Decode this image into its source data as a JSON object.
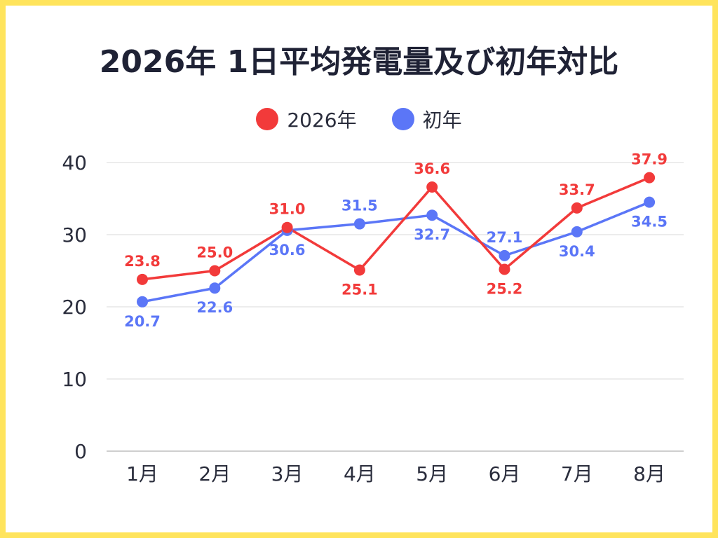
{
  "chart_data": {
    "type": "line",
    "title": "2026年 1日平均発電量及び初年対比",
    "categories": [
      "1月",
      "2月",
      "3月",
      "4月",
      "5月",
      "6月",
      "7月",
      "8月"
    ],
    "ylim": [
      0,
      40
    ],
    "yticks": [
      "0",
      "10",
      "20",
      "30",
      "40"
    ],
    "grid": true,
    "legend_position": "top-center",
    "series": [
      {
        "name": "2026年",
        "color": "#F23A3A",
        "values": [
          23.8,
          25.0,
          31.0,
          25.1,
          36.6,
          25.2,
          33.7,
          37.9
        ],
        "labels": [
          "23.8",
          "25.0",
          "31.0",
          "25.1",
          "36.6",
          "25.2",
          "33.7",
          "37.9"
        ],
        "label_side": [
          "above",
          "above",
          "above",
          "below",
          "above",
          "below",
          "above",
          "above"
        ]
      },
      {
        "name": "初年",
        "color": "#5B76F7",
        "values": [
          20.7,
          22.6,
          30.6,
          31.5,
          32.7,
          27.1,
          30.4,
          34.5
        ],
        "labels": [
          "20.7",
          "22.6",
          "30.6",
          "31.5",
          "32.7",
          "27.1",
          "30.4",
          "34.5"
        ],
        "label_side": [
          "below",
          "below",
          "below",
          "above",
          "below",
          "above",
          "below",
          "below"
        ]
      }
    ]
  },
  "colors": {
    "border": "#FFE45C",
    "background": "#FFFFFF",
    "title": "#1F2235",
    "grid": "#D9D9D9",
    "axis": "#9E9E9E"
  }
}
